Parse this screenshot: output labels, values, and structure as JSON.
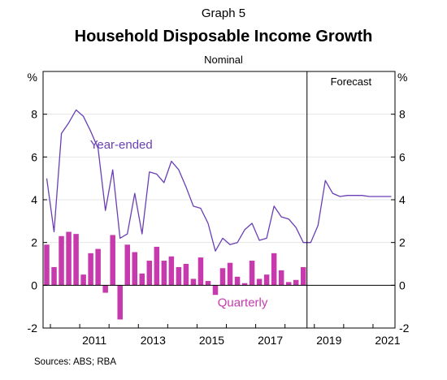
{
  "header": {
    "graph_number": "Graph 5",
    "title": "Household Disposable Income Growth",
    "subtitle": "Nominal"
  },
  "footer": {
    "sources": "Sources:   ABS; RBA"
  },
  "chart_data": {
    "type": "bar+line",
    "y_unit_left": "%",
    "y_unit_right": "%",
    "ylim": [
      -2,
      10
    ],
    "y_ticks": [
      -2,
      0,
      2,
      4,
      6,
      8
    ],
    "x_range": [
      2009.75,
      2021.75
    ],
    "x_ticks": [
      "2011",
      "2013",
      "2015",
      "2017",
      "2019",
      "2021"
    ],
    "forecast_start": 2018.75,
    "forecast_label": "Forecast",
    "colors": {
      "year_ended": "#6a3fb5",
      "quarterly": "#c63aad",
      "axis": "#000000",
      "grid": "#e6e6e6"
    },
    "series": [
      {
        "name": "Year-ended",
        "kind": "line",
        "label_color": "#6a3fb5",
        "x": [
          2009.75,
          2010.0,
          2010.25,
          2010.5,
          2010.75,
          2011.0,
          2011.25,
          2011.5,
          2011.75,
          2012.0,
          2012.25,
          2012.5,
          2012.75,
          2013.0,
          2013.25,
          2013.5,
          2013.75,
          2014.0,
          2014.25,
          2014.5,
          2014.75,
          2015.0,
          2015.25,
          2015.5,
          2015.75,
          2016.0,
          2016.25,
          2016.5,
          2016.75,
          2017.0,
          2017.25,
          2017.5,
          2017.75,
          2018.0,
          2018.25,
          2018.5,
          2018.75,
          2019.0,
          2019.25,
          2019.5,
          2019.75,
          2020.0,
          2020.25,
          2020.5,
          2020.75,
          2021.0,
          2021.25,
          2021.5
        ],
        "values": [
          5.0,
          2.5,
          7.1,
          7.6,
          8.2,
          7.9,
          7.2,
          6.4,
          3.5,
          5.4,
          2.2,
          2.4,
          4.3,
          2.4,
          5.3,
          5.2,
          4.8,
          5.8,
          5.4,
          4.6,
          3.7,
          3.6,
          2.9,
          1.6,
          2.2,
          1.9,
          2.0,
          2.6,
          2.9,
          2.1,
          2.2,
          3.7,
          3.2,
          3.1,
          2.7,
          2.0,
          2.0,
          2.8,
          4.9,
          4.3,
          4.15,
          4.2,
          4.2,
          4.2,
          4.15,
          4.15,
          4.15,
          4.15
        ]
      },
      {
        "name": "Quarterly",
        "kind": "bar",
        "label_color": "#c63aad",
        "x": [
          2009.75,
          2010.0,
          2010.25,
          2010.5,
          2010.75,
          2011.0,
          2011.25,
          2011.5,
          2011.75,
          2012.0,
          2012.25,
          2012.5,
          2012.75,
          2013.0,
          2013.25,
          2013.5,
          2013.75,
          2014.0,
          2014.25,
          2014.5,
          2014.75,
          2015.0,
          2015.25,
          2015.5,
          2015.75,
          2016.0,
          2016.25,
          2016.5,
          2016.75,
          2017.0,
          2017.25,
          2017.5,
          2017.75,
          2018.0,
          2018.25,
          2018.5
        ],
        "values": [
          1.9,
          0.85,
          2.3,
          2.5,
          2.4,
          0.5,
          1.5,
          1.7,
          -0.35,
          2.35,
          -1.6,
          1.9,
          1.55,
          0.55,
          1.15,
          1.8,
          1.15,
          1.35,
          0.85,
          1.0,
          0.3,
          1.3,
          0.2,
          -0.45,
          0.8,
          1.05,
          0.4,
          0.1,
          1.15,
          0.3,
          0.5,
          1.5,
          0.7,
          0.15,
          0.25,
          0.85
        ]
      }
    ]
  }
}
